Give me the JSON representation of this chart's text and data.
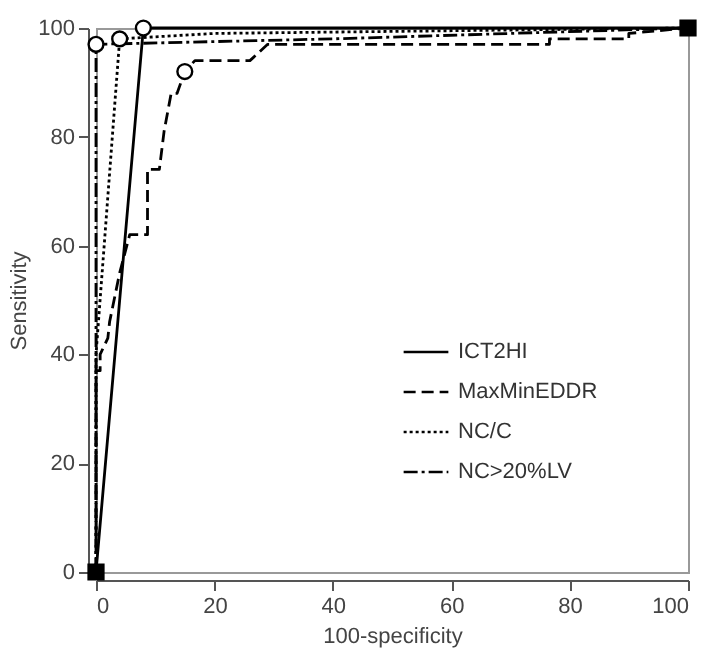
{
  "chart_data": {
    "type": "line",
    "xlabel": "100-specificity",
    "ylabel": "Sensitivity",
    "xlim": [
      0,
      100
    ],
    "ylim": [
      0,
      100
    ],
    "xticks": [
      0,
      20,
      40,
      60,
      80,
      100
    ],
    "yticks": [
      0,
      20,
      40,
      60,
      80,
      100
    ],
    "grid": false,
    "legend": "bottom right",
    "series": [
      {
        "name": "ICT2HI",
        "color": "#000000",
        "line_style": "solid",
        "x": [
          0,
          8,
          100
        ],
        "values": [
          0,
          100,
          100
        ]
      },
      {
        "name": "MaxMinEDDR",
        "color": "#000000",
        "line_style": "dashed",
        "x": [
          0,
          0,
          0.7,
          0.7,
          2,
          2.3,
          4,
          5.7,
          8.7,
          8.7,
          10.7,
          11.5,
          12.7,
          13.7,
          15,
          16.7,
          26,
          29,
          76.6,
          76.6,
          90,
          90,
          100
        ],
        "values": [
          0,
          37,
          37,
          40,
          43,
          46,
          55,
          62,
          62,
          74,
          74,
          81,
          88,
          88,
          92,
          94,
          94,
          97,
          97,
          98,
          98,
          99,
          100
        ]
      },
      {
        "name": "NC/C",
        "color": "#000000",
        "line_style": "dotted",
        "x": [
          0,
          0,
          4,
          20,
          100
        ],
        "values": [
          0,
          40,
          98,
          99,
          100
        ]
      },
      {
        "name": "NC>20%LV",
        "color": "#000000",
        "line_style": "dashdot",
        "x": [
          0,
          0,
          40,
          100
        ],
        "values": [
          0,
          97,
          98,
          100
        ]
      },
      {
        "type": "scatter",
        "marker": "circle",
        "color": "#000000",
        "x": [
          8,
          15,
          4,
          0
        ],
        "values": [
          100,
          92,
          98,
          97
        ]
      },
      {
        "type": "scatter",
        "marker": "square",
        "color": "#000000",
        "x": [
          0,
          100
        ],
        "values": [
          0,
          100
        ]
      }
    ]
  }
}
